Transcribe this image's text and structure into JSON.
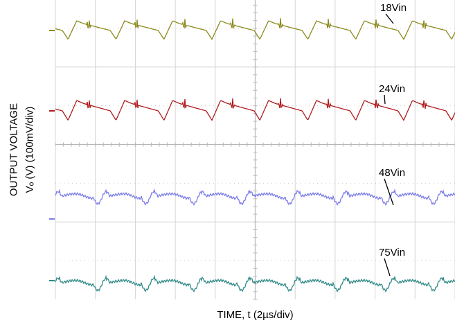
{
  "chart_data": {
    "type": "line",
    "title": "",
    "xlabel": "TIME, t (2µs/div)",
    "ylabel_line1": "OUTPUT VOLTAGE",
    "ylabel_line2": "Vₒ (V) (100mV/div)",
    "x_divisions": 10,
    "y_divisions": 8,
    "x_range_us": [
      0,
      20
    ],
    "ripple_period_us": 2.4,
    "grid": true,
    "series": [
      {
        "name": "18Vin",
        "color": "#8b8a1e"
      },
      {
        "name": "24Vin",
        "color": "#b01c1c"
      },
      {
        "name": "48Vin",
        "color": "#7b7de8"
      },
      {
        "name": "75Vin",
        "color": "#2f8a87"
      }
    ]
  }
}
